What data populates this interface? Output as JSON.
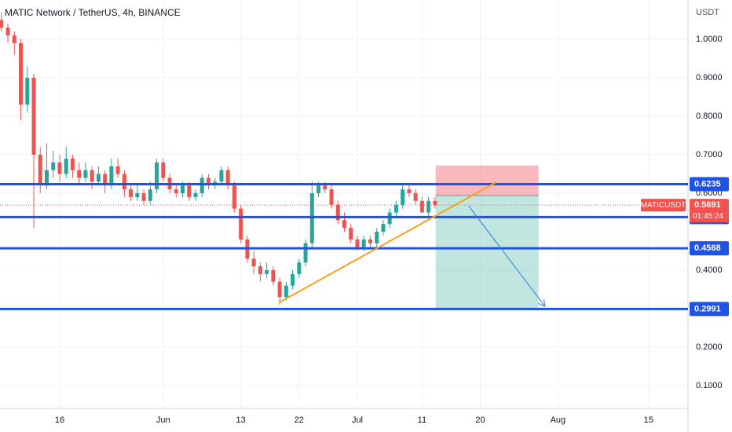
{
  "chart_data": {
    "type": "candlestick",
    "title": "MATIC Network / TetherUS, 4h, BINANCE",
    "y_unit": "USDT",
    "symbol": "MATICUSDT",
    "last_price": 0.5691,
    "countdown": "01:45:24",
    "up_color": "#26a69a",
    "down_color": "#ef5350",
    "x": [
      6,
      7,
      8,
      9,
      10,
      11,
      12,
      13,
      14,
      15,
      16,
      17,
      18,
      19,
      20,
      21,
      22,
      23,
      24,
      25,
      26,
      27,
      28,
      29,
      30,
      31,
      32,
      33,
      34,
      35,
      36,
      37,
      38,
      39,
      40,
      41,
      42,
      43,
      44,
      45,
      46,
      47,
      48,
      49,
      50,
      51,
      52,
      53,
      54,
      55,
      56,
      57,
      58,
      59,
      60,
      61,
      62,
      63,
      64,
      65,
      66,
      67,
      68,
      69,
      70,
      71,
      72,
      73
    ],
    "candles": [
      [
        1.05,
        1.07,
        1.02,
        1.03
      ],
      [
        1.03,
        1.04,
        0.99,
        1.01
      ],
      [
        1.01,
        1.02,
        0.96,
        0.99
      ],
      [
        0.99,
        1.0,
        0.79,
        0.83
      ],
      [
        0.83,
        0.93,
        0.81,
        0.9
      ],
      [
        0.9,
        0.91,
        0.51,
        0.7
      ],
      [
        0.7,
        0.72,
        0.6,
        0.62
      ],
      [
        0.62,
        0.73,
        0.61,
        0.66
      ],
      [
        0.66,
        0.71,
        0.64,
        0.68
      ],
      [
        0.68,
        0.7,
        0.63,
        0.65
      ],
      [
        0.65,
        0.72,
        0.64,
        0.69
      ],
      [
        0.69,
        0.7,
        0.64,
        0.66
      ],
      [
        0.66,
        0.68,
        0.62,
        0.64
      ],
      [
        0.64,
        0.68,
        0.63,
        0.66
      ],
      [
        0.66,
        0.67,
        0.61,
        0.63
      ],
      [
        0.63,
        0.67,
        0.62,
        0.65
      ],
      [
        0.65,
        0.66,
        0.6,
        0.62
      ],
      [
        0.62,
        0.69,
        0.61,
        0.67
      ],
      [
        0.67,
        0.69,
        0.64,
        0.65
      ],
      [
        0.65,
        0.66,
        0.59,
        0.61
      ],
      [
        0.61,
        0.62,
        0.58,
        0.59
      ],
      [
        0.59,
        0.62,
        0.58,
        0.6
      ],
      [
        0.6,
        0.61,
        0.57,
        0.58
      ],
      [
        0.58,
        0.63,
        0.57,
        0.61
      ],
      [
        0.61,
        0.69,
        0.6,
        0.68
      ],
      [
        0.68,
        0.69,
        0.63,
        0.64
      ],
      [
        0.64,
        0.65,
        0.6,
        0.61
      ],
      [
        0.61,
        0.62,
        0.59,
        0.6
      ],
      [
        0.6,
        0.63,
        0.59,
        0.62
      ],
      [
        0.62,
        0.63,
        0.58,
        0.59
      ],
      [
        0.59,
        0.61,
        0.58,
        0.6
      ],
      [
        0.6,
        0.65,
        0.59,
        0.64
      ],
      [
        0.64,
        0.65,
        0.61,
        0.62
      ],
      [
        0.62,
        0.64,
        0.61,
        0.63
      ],
      [
        0.63,
        0.67,
        0.62,
        0.66
      ],
      [
        0.66,
        0.67,
        0.61,
        0.62
      ],
      [
        0.62,
        0.63,
        0.55,
        0.56
      ],
      [
        0.56,
        0.57,
        0.47,
        0.48
      ],
      [
        0.48,
        0.49,
        0.42,
        0.43
      ],
      [
        0.43,
        0.45,
        0.39,
        0.41
      ],
      [
        0.41,
        0.42,
        0.37,
        0.39
      ],
      [
        0.39,
        0.42,
        0.38,
        0.4
      ],
      [
        0.4,
        0.41,
        0.36,
        0.37
      ],
      [
        0.37,
        0.38,
        0.31,
        0.33
      ],
      [
        0.33,
        0.37,
        0.32,
        0.36
      ],
      [
        0.36,
        0.4,
        0.35,
        0.39
      ],
      [
        0.39,
        0.43,
        0.38,
        0.42
      ],
      [
        0.42,
        0.48,
        0.41,
        0.47
      ],
      [
        0.47,
        0.63,
        0.46,
        0.6
      ],
      [
        0.6,
        0.63,
        0.59,
        0.62
      ],
      [
        0.62,
        0.63,
        0.6,
        0.61
      ],
      [
        0.61,
        0.62,
        0.56,
        0.57
      ],
      [
        0.57,
        0.58,
        0.52,
        0.53
      ],
      [
        0.53,
        0.55,
        0.5,
        0.51
      ],
      [
        0.51,
        0.52,
        0.47,
        0.48
      ],
      [
        0.48,
        0.49,
        0.45,
        0.46
      ],
      [
        0.46,
        0.49,
        0.45,
        0.48
      ],
      [
        0.48,
        0.49,
        0.46,
        0.47
      ],
      [
        0.47,
        0.51,
        0.46,
        0.5
      ],
      [
        0.5,
        0.53,
        0.49,
        0.52
      ],
      [
        0.52,
        0.56,
        0.51,
        0.55
      ],
      [
        0.55,
        0.58,
        0.54,
        0.57
      ],
      [
        0.57,
        0.62,
        0.56,
        0.61
      ],
      [
        0.61,
        0.62,
        0.59,
        0.6
      ],
      [
        0.6,
        0.61,
        0.57,
        0.58
      ],
      [
        0.58,
        0.59,
        0.55,
        0.55
      ],
      [
        0.55,
        0.59,
        0.54,
        0.58
      ],
      [
        0.58,
        0.59,
        0.56,
        0.5691
      ]
    ],
    "xlim": [
      5.78,
      112.1
    ],
    "xticks": [
      {
        "value": 15,
        "label": "16"
      },
      {
        "value": 31,
        "label": "Jun"
      },
      {
        "value": 43,
        "label": "13"
      },
      {
        "value": 52,
        "label": "22"
      },
      {
        "value": 61,
        "label": "Jul"
      },
      {
        "value": 71,
        "label": "11"
      },
      {
        "value": 80,
        "label": "20"
      },
      {
        "value": 92,
        "label": "Aug"
      },
      {
        "value": 106,
        "label": "15"
      }
    ],
    "ylim": [
      0.0408,
      1.102
    ],
    "yticks": [
      {
        "value": 0.1,
        "label": "0.1000"
      },
      {
        "value": 0.2,
        "label": "0.2000"
      },
      {
        "value": 0.4,
        "label": "0.4000"
      },
      {
        "value": 0.6,
        "label": "0.6000"
      },
      {
        "value": 0.7,
        "label": "0.7000"
      },
      {
        "value": 0.8,
        "label": "0.8000"
      },
      {
        "value": 0.9,
        "label": "0.9000"
      },
      {
        "value": 1.0,
        "label": "1.0000"
      }
    ],
    "grid": true,
    "levels": [
      0.6235,
      0.5379,
      0.4568,
      0.2991
    ],
    "level_color": "#1e53e5",
    "trend_line": {
      "x": [
        48.9,
        82.5
      ],
      "y": [
        0.316,
        0.629
      ],
      "color": "#f7a21b"
    },
    "arrow": {
      "x": [
        78.2,
        90.0
      ],
      "y": [
        0.567,
        0.306
      ],
      "color": "#2f7fe0"
    },
    "position": {
      "x": [
        73.1,
        89.0
      ],
      "stop": 0.672,
      "entry": 0.594,
      "target": 0.2991
    }
  }
}
